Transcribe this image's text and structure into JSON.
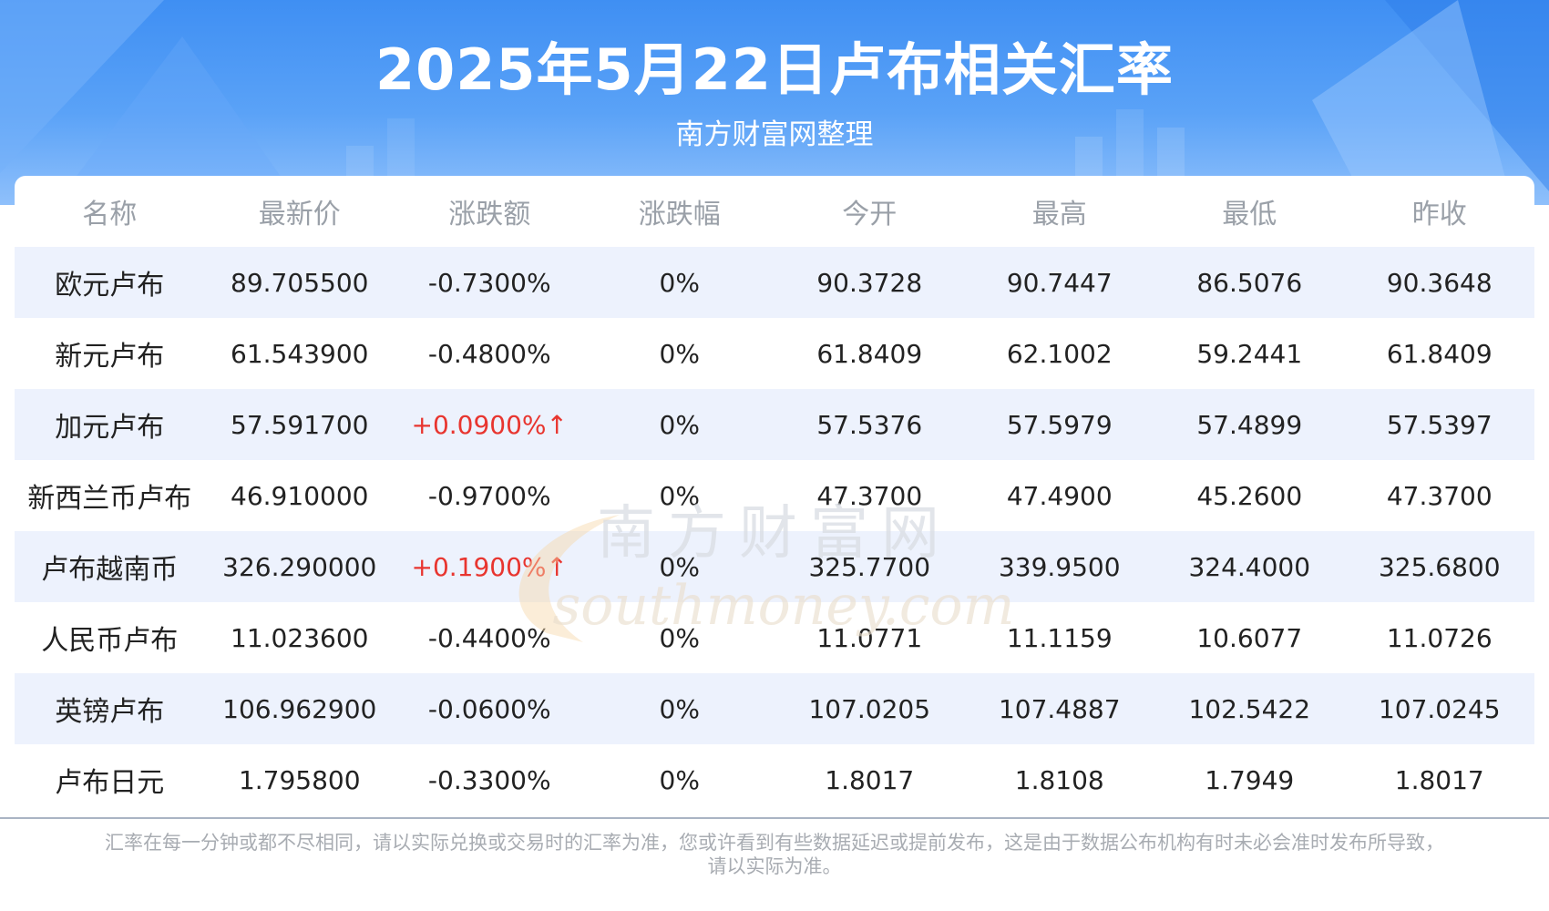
{
  "header": {
    "title": "2025年5月22日卢布相关汇率",
    "subtitle": "南方财富网整理"
  },
  "table": {
    "columns": [
      "名称",
      "最新价",
      "涨跌额",
      "涨跌幅",
      "今开",
      "最高",
      "最低",
      "昨收"
    ],
    "rows": [
      {
        "name": "欧元卢布",
        "latest": "89.705500",
        "change": "-0.7300%",
        "pct": "0%",
        "open": "90.3728",
        "high": "90.7447",
        "low": "86.5076",
        "prev": "90.3648",
        "direction": "down"
      },
      {
        "name": "新元卢布",
        "latest": "61.543900",
        "change": "-0.4800%",
        "pct": "0%",
        "open": "61.8409",
        "high": "62.1002",
        "low": "59.2441",
        "prev": "61.8409",
        "direction": "down"
      },
      {
        "name": "加元卢布",
        "latest": "57.591700",
        "change": "+0.0900%↑",
        "pct": "0%",
        "open": "57.5376",
        "high": "57.5979",
        "low": "57.4899",
        "prev": "57.5397",
        "direction": "up"
      },
      {
        "name": "新西兰币卢布",
        "latest": "46.910000",
        "change": "-0.9700%",
        "pct": "0%",
        "open": "47.3700",
        "high": "47.4900",
        "low": "45.2600",
        "prev": "47.3700",
        "direction": "down"
      },
      {
        "name": "卢布越南币",
        "latest": "326.290000",
        "change": "+0.1900%↑",
        "pct": "0%",
        "open": "325.7700",
        "high": "339.9500",
        "low": "324.4000",
        "prev": "325.6800",
        "direction": "up"
      },
      {
        "name": "人民币卢布",
        "latest": "11.023600",
        "change": "-0.4400%",
        "pct": "0%",
        "open": "11.0771",
        "high": "11.1159",
        "low": "10.6077",
        "prev": "11.0726",
        "direction": "down"
      },
      {
        "name": "英镑卢布",
        "latest": "106.962900",
        "change": "-0.0600%",
        "pct": "0%",
        "open": "107.0205",
        "high": "107.4887",
        "low": "102.5422",
        "prev": "107.0245",
        "direction": "down"
      },
      {
        "name": "卢布日元",
        "latest": "1.795800",
        "change": "-0.3300%",
        "pct": "0%",
        "open": "1.8017",
        "high": "1.8108",
        "low": "1.7949",
        "prev": "1.8017",
        "direction": "down"
      }
    ]
  },
  "watermark": {
    "cn": "南方财富网",
    "en": "southmoney.com"
  },
  "footer": {
    "line1": "汇率在每一分钟或都不尽相同，请以实际兑换或交易时的汇率为准，您或许看到有些数据延迟或提前发布，这是由于数据公布机构有时未必会准时发布所导致，",
    "line2": "请以实际为准。"
  },
  "colors": {
    "banner": "#4a96f5",
    "stripe": "#edf2fd",
    "up": "#e8352f",
    "header_text": "#9aa0a8"
  }
}
